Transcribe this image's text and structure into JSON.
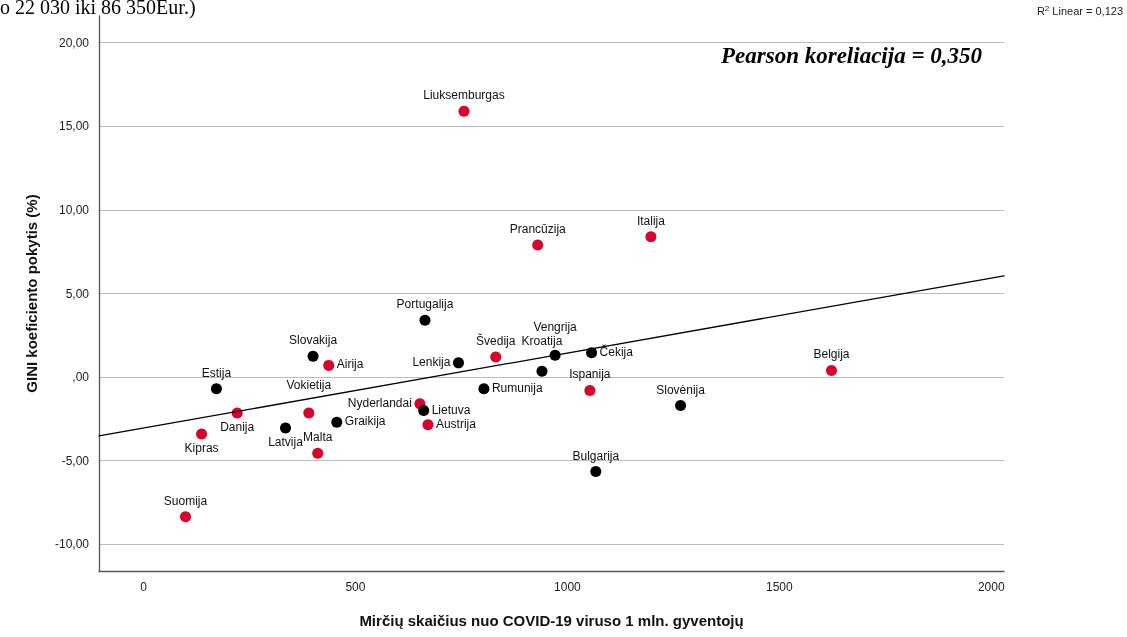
{
  "chart_data": {
    "type": "scatter",
    "xlabel": "Mirčių skaičius nuo COVID-19 viruso 1 mln. gyventojų",
    "ylabel": "GINI koeficiento pokytis (%)",
    "xlim": [
      -105,
      2030
    ],
    "xticks": [
      0,
      500,
      1000,
      1500,
      2000
    ],
    "ylim": [
      -11.6,
      21.6
    ],
    "yticks": [
      {
        "value": -10,
        "label": "-10,00"
      },
      {
        "value": -5,
        "label": "-5,00"
      },
      {
        "value": 0,
        "label": ",00"
      },
      {
        "value": 5,
        "label": "5,00"
      },
      {
        "value": 10,
        "label": "10,00"
      },
      {
        "value": 15,
        "label": "15,00"
      },
      {
        "value": 20,
        "label": "20,00"
      }
    ],
    "grid": "y",
    "marker": "circle",
    "series": [
      {
        "type": "scatter",
        "color": "#d9042b",
        "x": [
          756,
          930,
          1197,
          831,
          437,
          221,
          390,
          137,
          411,
          99,
          652,
          671,
          1053,
          1623
        ],
        "values": [
          15.9,
          7.9,
          8.4,
          1.2,
          0.7,
          -2.15,
          -2.15,
          -3.4,
          -4.55,
          -8.35,
          -1.6,
          -2.85,
          -0.8,
          0.4
        ]
      },
      {
        "type": "scatter",
        "color": "#000000",
        "x": [
          664,
          400,
          172,
          335,
          456,
          661,
          743,
          803,
          940,
          971,
          1057,
          1267,
          1067
        ],
        "values": [
          3.4,
          1.25,
          -0.7,
          -3.05,
          -2.7,
          -2.0,
          0.85,
          -0.7,
          0.35,
          1.3,
          1.45,
          -1.7,
          -5.65
        ]
      },
      {
        "type": "line",
        "color": "#000000",
        "marker": "none",
        "line_style": "solid",
        "x": [
          -105,
          2030
        ],
        "values": [
          -3.52,
          6.06
        ]
      }
    ],
    "annotations": [
      "o 22 030 iki 86 350Eur.)",
      "R$^{2}$ Linear = 0,123",
      "Pearson koreliacija = 0,350",
      {
        "text": "Liuksemburgas",
        "x": 756,
        "y": 15.9
      },
      {
        "text": "Prancūzija",
        "x": 930,
        "y": 7.9
      },
      {
        "text": "Italija",
        "x": 1197,
        "y": 8.4
      },
      {
        "text": "Švedija",
        "x": 831,
        "y": 1.2
      },
      {
        "text": "Airija",
        "x": 437,
        "y": 0.7
      },
      {
        "text": "Danija",
        "x": 221,
        "y": -2.15
      },
      {
        "text": "Vokietija",
        "x": 390,
        "y": -2.15
      },
      {
        "text": "Kipras",
        "x": 137,
        "y": -3.4
      },
      {
        "text": "Malta",
        "x": 411,
        "y": -4.55
      },
      {
        "text": "Suomija",
        "x": 99,
        "y": -8.35
      },
      {
        "text": "Nyderlandai",
        "x": 652,
        "y": -1.6
      },
      {
        "text": "Austrija",
        "x": 671,
        "y": -2.85
      },
      {
        "text": "Ispanija",
        "x": 1053,
        "y": -0.8
      },
      {
        "text": "Belgija",
        "x": 1623,
        "y": 0.4
      },
      {
        "text": "Portugalija",
        "x": 664,
        "y": 3.4
      },
      {
        "text": "Slovakija",
        "x": 400,
        "y": 1.25
      },
      {
        "text": "Estija",
        "x": 172,
        "y": -0.7
      },
      {
        "text": "Latvija",
        "x": 335,
        "y": -3.05
      },
      {
        "text": "Graikija",
        "x": 456,
        "y": -2.7
      },
      {
        "text": "Lietuva",
        "x": 661,
        "y": -2.0
      },
      {
        "text": "Lenkija",
        "x": 743,
        "y": 0.85
      },
      {
        "text": "Rumunija",
        "x": 803,
        "y": -0.7
      },
      {
        "text": "Kroatija",
        "x": 940,
        "y": 0.35
      },
      {
        "text": "Vengrija",
        "x": 971,
        "y": 1.3
      },
      {
        "text": "Čekija",
        "x": 1057,
        "y": 1.45
      },
      {
        "text": "Slovėnija",
        "x": 1267,
        "y": -1.7
      },
      {
        "text": "Bulgarija",
        "x": 1067,
        "y": -5.65
      }
    ]
  }
}
